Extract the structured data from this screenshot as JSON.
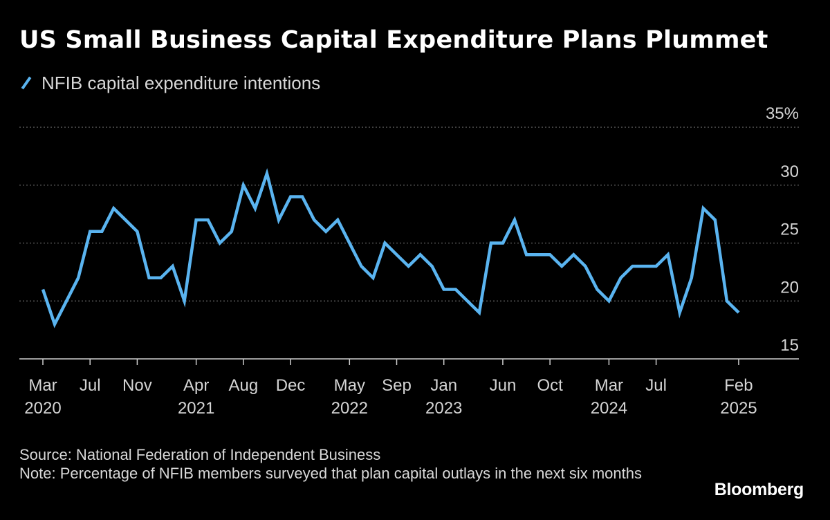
{
  "title": "US Small Business Capital Expenditure Plans Plummet",
  "legend": {
    "label": "NFIB capital expenditure intentions"
  },
  "colors": {
    "background": "#000000",
    "line": "#5ab4f0",
    "grid": "#666666",
    "text": "#d4d4d4"
  },
  "chart_data": {
    "type": "line",
    "title": "US Small Business Capital Expenditure Plans Plummet",
    "series": [
      {
        "name": "NFIB capital expenditure intentions",
        "values": [
          21,
          18,
          20,
          22,
          26,
          26,
          28,
          27,
          26,
          22,
          22,
          23,
          20,
          27,
          27,
          25,
          26,
          30,
          28,
          31,
          27,
          29,
          29,
          27,
          26,
          27,
          25,
          23,
          22,
          25,
          24,
          23,
          24,
          23,
          21,
          21,
          20,
          19,
          25,
          25,
          27,
          24,
          24,
          24,
          23,
          24,
          23,
          21,
          20,
          22,
          23,
          23,
          23,
          24,
          19,
          22,
          28,
          27,
          20,
          19
        ]
      }
    ],
    "x_start": "Mar 2020",
    "x_end": "Feb 2025",
    "x_ticks": [
      {
        "index": 0,
        "month": "Mar",
        "year": "2020"
      },
      {
        "index": 4,
        "month": "Jul",
        "year": ""
      },
      {
        "index": 8,
        "month": "Nov",
        "year": ""
      },
      {
        "index": 13,
        "month": "Apr",
        "year": "2021"
      },
      {
        "index": 17,
        "month": "Aug",
        "year": ""
      },
      {
        "index": 21,
        "month": "Dec",
        "year": ""
      },
      {
        "index": 26,
        "month": "May",
        "year": "2022"
      },
      {
        "index": 30,
        "month": "Sep",
        "year": ""
      },
      {
        "index": 34,
        "month": "Jan",
        "year": "2023"
      },
      {
        "index": 39,
        "month": "Jun",
        "year": ""
      },
      {
        "index": 43,
        "month": "Oct",
        "year": ""
      },
      {
        "index": 48,
        "month": "Mar",
        "year": "2024"
      },
      {
        "index": 52,
        "month": "Jul",
        "year": ""
      },
      {
        "index": 59,
        "month": "Feb",
        "year": "2025"
      }
    ],
    "y_ticks": [
      {
        "value": 35,
        "label": "35%"
      },
      {
        "value": 30,
        "label": "30"
      },
      {
        "value": 25,
        "label": "25"
      },
      {
        "value": 20,
        "label": "20"
      },
      {
        "value": 15,
        "label": "15"
      }
    ],
    "ylim": [
      15,
      35
    ],
    "xlabel": "",
    "ylabel": "",
    "grid": true,
    "legend_position": "top-left"
  },
  "footer": {
    "source": "Source: National Federation of Independent Business",
    "note": "Note: Percentage of NFIB members surveyed that plan capital outlays in the next six months"
  },
  "brand": "Bloomberg"
}
